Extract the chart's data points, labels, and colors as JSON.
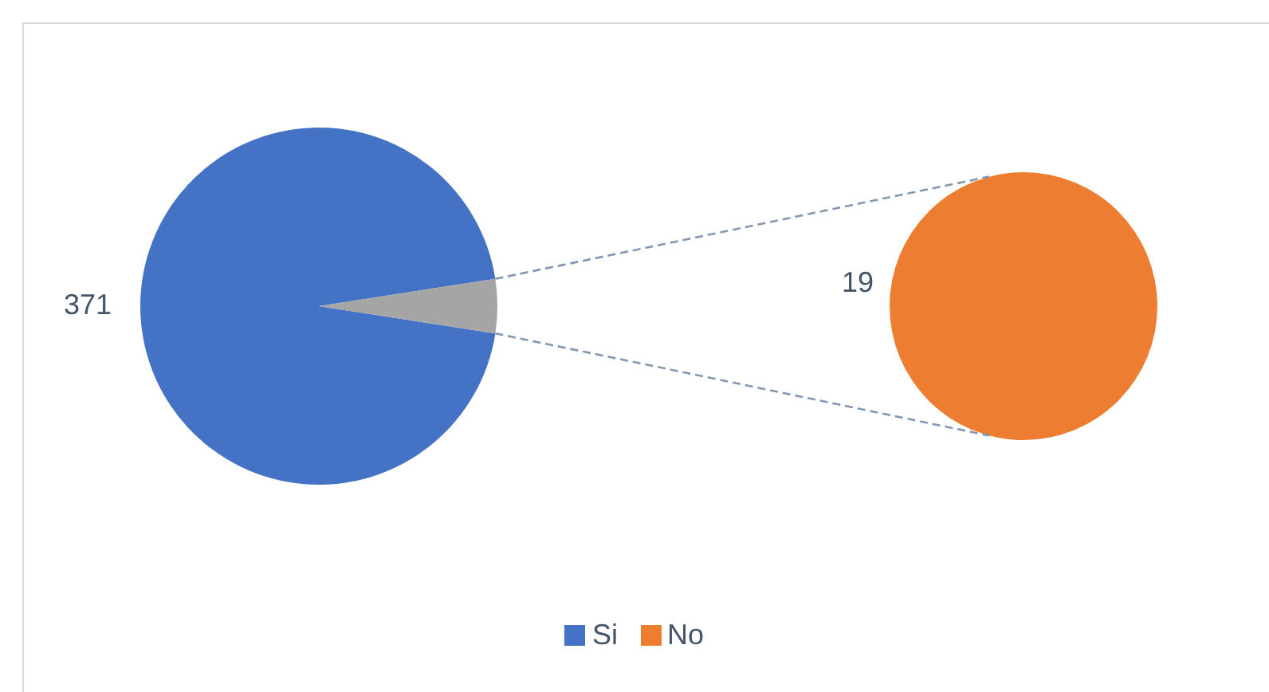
{
  "chart_data": [
    {
      "type": "pie",
      "categories": [
        "Si",
        null
      ],
      "values": [
        371,
        19
      ],
      "colors": [
        "#4472c4",
        "#a5a5a5"
      ],
      "value_labels": [
        "371",
        null
      ],
      "legend": "bottom"
    },
    {
      "type": "pie",
      "categories": [
        "No"
      ],
      "values": [
        19
      ],
      "colors": [
        "#ed7d31"
      ],
      "value_labels": [
        "19"
      ],
      "legend": "bottom"
    }
  ]
}
